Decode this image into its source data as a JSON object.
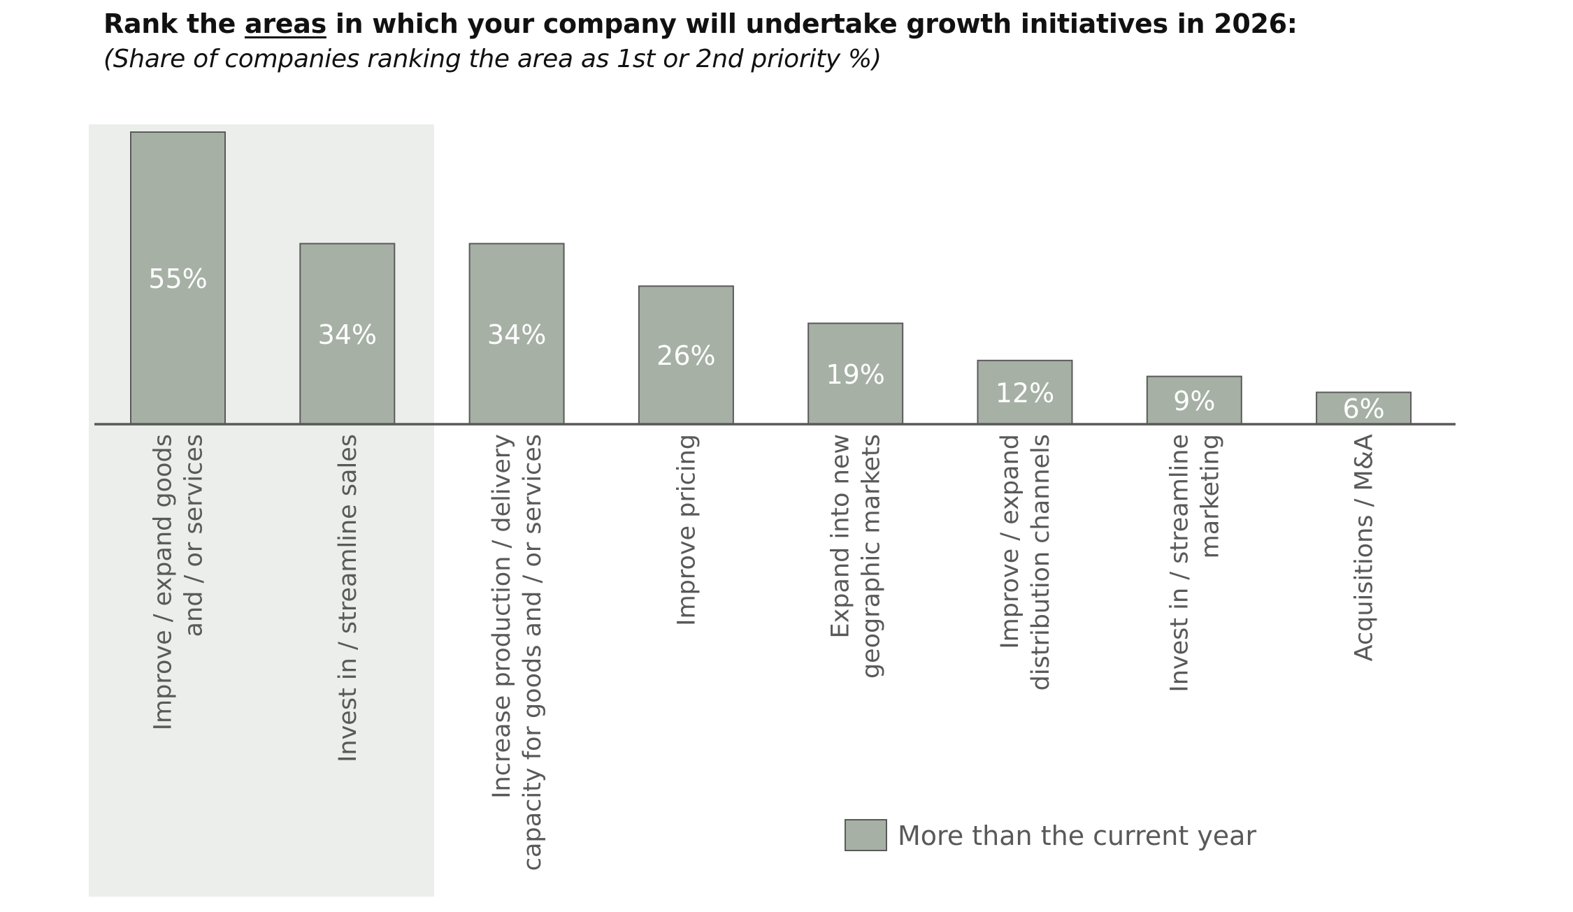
{
  "title": {
    "prefix": "Rank the ",
    "underlined": "areas",
    "suffix": " in which your company will undertake growth initiatives in 2026:"
  },
  "subtitle": "(Share of companies ranking the area as 1st or 2nd priority %)",
  "colors": {
    "bar_fill": "#a6b0a5",
    "bar_stroke": "#5a5a5a",
    "axis": "#595959",
    "highlight_panel": "#eceeeb",
    "value_label": "#ffffff",
    "category_label": "#595959"
  },
  "chart_data": {
    "type": "bar",
    "title": "Rank the areas in which your company will undertake growth initiatives in 2026:",
    "subtitle": "(Share of companies ranking the area as 1st or 2nd priority %)",
    "xlabel": "",
    "ylabel": "",
    "ylim": [
      0,
      55
    ],
    "grid": false,
    "legend_position": "bottom-right",
    "highlighted_categories": [
      0,
      1
    ],
    "categories": [
      [
        "Improve / expand goods",
        "and / or services"
      ],
      [
        "Invest in / streamline sales"
      ],
      [
        "Increase production / delivery",
        "capacity for goods and / or services"
      ],
      [
        "Improve pricing"
      ],
      [
        "Expand into new",
        "geographic markets"
      ],
      [
        "Improve / expand",
        "distribution channels"
      ],
      [
        "Invest in / streamline",
        "marketing"
      ],
      [
        "Acquisitions / M&A"
      ]
    ],
    "series": [
      {
        "name": "More than the current year",
        "values": [
          55,
          34,
          34,
          26,
          19,
          12,
          9,
          6
        ],
        "labels": [
          "55%",
          "34%",
          "34%",
          "26%",
          "19%",
          "12%",
          "9%",
          "6%"
        ]
      }
    ]
  },
  "legend": {
    "items": [
      {
        "label": "More than the current year"
      }
    ]
  }
}
